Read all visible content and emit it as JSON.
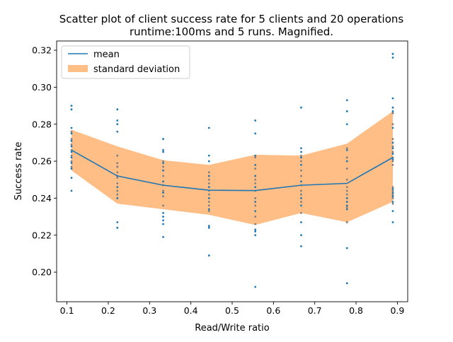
{
  "colors": {
    "mean": "#1f77b4",
    "band": "#ffbe86",
    "points_blue": "#1f77b4",
    "points_grey": "#808080"
  },
  "chart_data": {
    "type": "scatter",
    "title": "Scatter plot of client success rate for 5 clients and 20 operations",
    "subtitle": "runtime:100ms and 5 runs. Magnified.",
    "xlabel": "Read/Write ratio",
    "ylabel": "Success rate",
    "xlim": [
      0.075,
      0.925
    ],
    "ylim": [
      0.184,
      0.325
    ],
    "xticks": [
      0.1,
      0.2,
      0.3,
      0.4,
      0.5,
      0.6,
      0.7,
      0.8,
      0.9
    ],
    "xtick_labels": [
      "0.1",
      "0.2",
      "0.3",
      "0.4",
      "0.5",
      "0.6",
      "0.7",
      "0.8",
      "0.9"
    ],
    "yticks": [
      0.2,
      0.22,
      0.24,
      0.26,
      0.28,
      0.3,
      0.32
    ],
    "ytick_labels": [
      "0.20",
      "0.22",
      "0.24",
      "0.26",
      "0.28",
      "0.30",
      "0.32"
    ],
    "grid": false,
    "legend_position": "top-left",
    "legend": [
      {
        "label": "mean",
        "kind": "line"
      },
      {
        "label": "standard deviation",
        "kind": "patch"
      }
    ],
    "x": [
      0.111,
      0.222,
      0.333,
      0.444,
      0.556,
      0.667,
      0.778,
      0.889
    ],
    "mean": [
      0.266,
      0.252,
      0.247,
      0.2443,
      0.2441,
      0.247,
      0.248,
      0.262
    ],
    "std_lower": [
      0.255,
      0.237,
      0.234,
      0.231,
      0.2255,
      0.232,
      0.227,
      0.238
    ],
    "std_upper": [
      0.277,
      0.268,
      0.2605,
      0.258,
      0.2635,
      0.263,
      0.2695,
      0.287
    ],
    "scatter_series": [
      {
        "color": "blue",
        "points": [
          [
            0.111,
            0.29
          ],
          [
            0.111,
            0.288
          ],
          [
            0.111,
            0.278
          ],
          [
            0.111,
            0.275
          ],
          [
            0.111,
            0.271
          ],
          [
            0.111,
            0.268
          ],
          [
            0.111,
            0.265
          ],
          [
            0.111,
            0.262
          ],
          [
            0.111,
            0.259
          ],
          [
            0.111,
            0.256
          ],
          [
            0.111,
            0.251
          ],
          [
            0.111,
            0.244
          ],
          [
            0.222,
            0.288
          ],
          [
            0.222,
            0.282
          ],
          [
            0.222,
            0.28
          ],
          [
            0.222,
            0.276
          ],
          [
            0.222,
            0.263
          ],
          [
            0.222,
            0.257
          ],
          [
            0.222,
            0.252
          ],
          [
            0.222,
            0.246
          ],
          [
            0.222,
            0.24
          ],
          [
            0.222,
            0.227
          ],
          [
            0.222,
            0.224
          ],
          [
            0.333,
            0.272
          ],
          [
            0.333,
            0.266
          ],
          [
            0.333,
            0.265
          ],
          [
            0.333,
            0.259
          ],
          [
            0.333,
            0.255
          ],
          [
            0.333,
            0.249
          ],
          [
            0.333,
            0.243
          ],
          [
            0.333,
            0.232
          ],
          [
            0.333,
            0.23
          ],
          [
            0.333,
            0.228
          ],
          [
            0.333,
            0.226
          ],
          [
            0.333,
            0.219
          ],
          [
            0.444,
            0.278
          ],
          [
            0.444,
            0.263
          ],
          [
            0.444,
            0.26
          ],
          [
            0.444,
            0.252
          ],
          [
            0.444,
            0.246
          ],
          [
            0.444,
            0.24
          ],
          [
            0.444,
            0.234
          ],
          [
            0.444,
            0.225
          ],
          [
            0.444,
            0.224
          ],
          [
            0.444,
            0.209
          ],
          [
            0.556,
            0.282
          ],
          [
            0.556,
            0.275
          ],
          [
            0.556,
            0.263
          ],
          [
            0.556,
            0.258
          ],
          [
            0.556,
            0.252
          ],
          [
            0.556,
            0.246
          ],
          [
            0.556,
            0.238
          ],
          [
            0.556,
            0.233
          ],
          [
            0.556,
            0.223
          ],
          [
            0.556,
            0.222
          ],
          [
            0.556,
            0.22
          ],
          [
            0.556,
            0.192
          ],
          [
            0.667,
            0.289
          ],
          [
            0.667,
            0.267
          ],
          [
            0.667,
            0.265
          ],
          [
            0.667,
            0.262
          ],
          [
            0.667,
            0.258
          ],
          [
            0.667,
            0.249
          ],
          [
            0.667,
            0.24
          ],
          [
            0.667,
            0.236
          ],
          [
            0.667,
            0.227
          ],
          [
            0.667,
            0.22
          ],
          [
            0.667,
            0.214
          ],
          [
            0.778,
            0.293
          ],
          [
            0.778,
            0.287
          ],
          [
            0.778,
            0.28
          ],
          [
            0.778,
            0.266
          ],
          [
            0.778,
            0.262
          ],
          [
            0.778,
            0.26
          ],
          [
            0.778,
            0.24
          ],
          [
            0.778,
            0.238
          ],
          [
            0.778,
            0.236
          ],
          [
            0.778,
            0.234
          ],
          [
            0.778,
            0.227
          ],
          [
            0.778,
            0.213
          ],
          [
            0.778,
            0.194
          ],
          [
            0.889,
            0.318
          ],
          [
            0.889,
            0.316
          ],
          [
            0.889,
            0.294
          ],
          [
            0.889,
            0.289
          ],
          [
            0.889,
            0.287
          ],
          [
            0.889,
            0.286
          ],
          [
            0.889,
            0.278
          ],
          [
            0.889,
            0.27
          ],
          [
            0.889,
            0.267
          ],
          [
            0.889,
            0.264
          ],
          [
            0.889,
            0.261
          ],
          [
            0.889,
            0.245
          ],
          [
            0.889,
            0.243
          ],
          [
            0.889,
            0.241
          ],
          [
            0.889,
            0.238
          ],
          [
            0.889,
            0.233
          ],
          [
            0.889,
            0.227
          ]
        ]
      },
      {
        "color": "grey",
        "points": [
          [
            0.111,
            0.276
          ],
          [
            0.111,
            0.272
          ],
          [
            0.111,
            0.269
          ],
          [
            0.111,
            0.266
          ],
          [
            0.111,
            0.263
          ],
          [
            0.111,
            0.26
          ],
          [
            0.111,
            0.257
          ],
          [
            0.222,
            0.263
          ],
          [
            0.222,
            0.259
          ],
          [
            0.222,
            0.257
          ],
          [
            0.222,
            0.254
          ],
          [
            0.222,
            0.251
          ],
          [
            0.222,
            0.248
          ],
          [
            0.222,
            0.244
          ],
          [
            0.222,
            0.242
          ],
          [
            0.333,
            0.26
          ],
          [
            0.333,
            0.257
          ],
          [
            0.333,
            0.252
          ],
          [
            0.333,
            0.247
          ],
          [
            0.333,
            0.244
          ],
          [
            0.333,
            0.241
          ],
          [
            0.333,
            0.236
          ],
          [
            0.444,
            0.254
          ],
          [
            0.444,
            0.25
          ],
          [
            0.444,
            0.248
          ],
          [
            0.444,
            0.244
          ],
          [
            0.444,
            0.242
          ],
          [
            0.444,
            0.238
          ],
          [
            0.444,
            0.236
          ],
          [
            0.444,
            0.233
          ],
          [
            0.556,
            0.262
          ],
          [
            0.556,
            0.256
          ],
          [
            0.556,
            0.25
          ],
          [
            0.556,
            0.248
          ],
          [
            0.556,
            0.244
          ],
          [
            0.556,
            0.24
          ],
          [
            0.556,
            0.236
          ],
          [
            0.556,
            0.23
          ],
          [
            0.556,
            0.226
          ],
          [
            0.667,
            0.263
          ],
          [
            0.667,
            0.26
          ],
          [
            0.667,
            0.255
          ],
          [
            0.667,
            0.252
          ],
          [
            0.667,
            0.247
          ],
          [
            0.667,
            0.244
          ],
          [
            0.667,
            0.242
          ],
          [
            0.667,
            0.238
          ],
          [
            0.667,
            0.232
          ],
          [
            0.778,
            0.267
          ],
          [
            0.778,
            0.262
          ],
          [
            0.778,
            0.256
          ],
          [
            0.778,
            0.25
          ],
          [
            0.778,
            0.246
          ],
          [
            0.778,
            0.244
          ],
          [
            0.778,
            0.242
          ],
          [
            0.778,
            0.235
          ],
          [
            0.778,
            0.227
          ],
          [
            0.889,
            0.286
          ],
          [
            0.889,
            0.28
          ],
          [
            0.889,
            0.272
          ],
          [
            0.889,
            0.268
          ],
          [
            0.889,
            0.265
          ],
          [
            0.889,
            0.262
          ],
          [
            0.889,
            0.26
          ],
          [
            0.889,
            0.258
          ],
          [
            0.889,
            0.246
          ],
          [
            0.889,
            0.244
          ],
          [
            0.889,
            0.242
          ],
          [
            0.889,
            0.24
          ],
          [
            0.889,
            0.237
          ]
        ]
      }
    ]
  }
}
